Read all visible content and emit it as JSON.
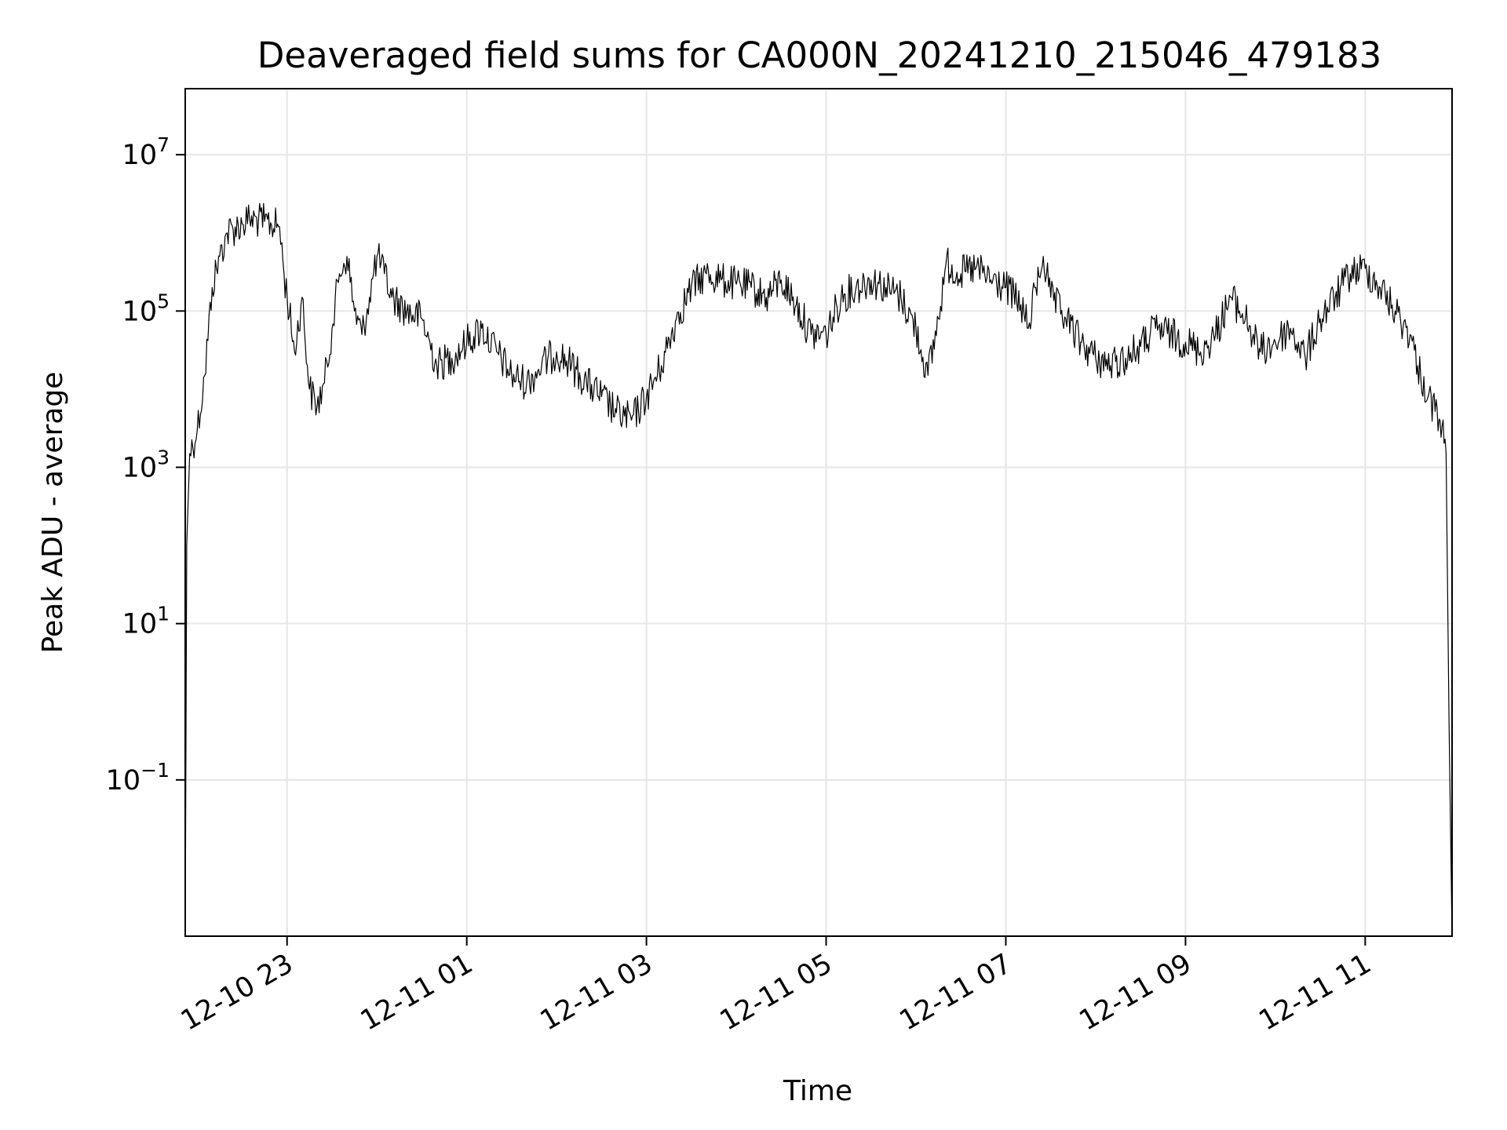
{
  "chart_data": {
    "type": "line",
    "title": "Deaveraged field sums for CA000N_20241210_215046_479183",
    "xlabel": "Time",
    "ylabel": "Peak ADU - average",
    "y_scale": "log",
    "ylim": [
      "1e-3",
      "7e7"
    ],
    "xlim": [
      "2024-12-10 21:52",
      "2024-12-11 11:58"
    ],
    "grid": true,
    "line_color": "#000000",
    "x_ticks": [
      {
        "value": "2024-12-10 23:00",
        "label": "12-10 23"
      },
      {
        "value": "2024-12-11 01:00",
        "label": "12-11 01"
      },
      {
        "value": "2024-12-11 03:00",
        "label": "12-11 03"
      },
      {
        "value": "2024-12-11 05:00",
        "label": "12-11 05"
      },
      {
        "value": "2024-12-11 07:00",
        "label": "12-11 07"
      },
      {
        "value": "2024-12-11 09:00",
        "label": "12-11 09"
      },
      {
        "value": "2024-12-11 11:00",
        "label": "12-11 11"
      }
    ],
    "y_ticks": [
      {
        "value": 10000000.0,
        "base": "10",
        "exp": "7"
      },
      {
        "value": 100000.0,
        "base": "10",
        "exp": "5"
      },
      {
        "value": 1000.0,
        "base": "10",
        "exp": "3"
      },
      {
        "value": 10.0,
        "base": "10",
        "exp": "1"
      },
      {
        "value": 0.1,
        "base": "10",
        "exp": "−1"
      }
    ],
    "series": [
      {
        "points": [
          [
            "2024-12-10 21:52",
            0.001
          ],
          [
            "2024-12-10 21:53",
            100
          ],
          [
            "2024-12-10 21:55",
            1500
          ],
          [
            "2024-12-10 22:00",
            3000
          ],
          [
            "2024-12-10 22:05",
            15000
          ],
          [
            "2024-12-10 22:10",
            200000
          ],
          [
            "2024-12-10 22:15",
            500000
          ],
          [
            "2024-12-10 22:20",
            1000000
          ],
          [
            "2024-12-10 22:30",
            1300000
          ],
          [
            "2024-12-10 22:35",
            1500000
          ],
          [
            "2024-12-10 22:45",
            1400000
          ],
          [
            "2024-12-10 22:55",
            1200000
          ],
          [
            "2024-12-10 22:58",
            300000
          ],
          [
            "2024-12-10 23:05",
            30000
          ],
          [
            "2024-12-10 23:10",
            150000
          ],
          [
            "2024-12-10 23:15",
            10000
          ],
          [
            "2024-12-10 23:20",
            6000
          ],
          [
            "2024-12-10 23:25",
            12000
          ],
          [
            "2024-12-10 23:30",
            60000
          ],
          [
            "2024-12-10 23:35",
            300000
          ],
          [
            "2024-12-10 23:40",
            500000
          ],
          [
            "2024-12-10 23:45",
            100000
          ],
          [
            "2024-12-10 23:50",
            50000
          ],
          [
            "2024-12-10 23:55",
            150000
          ],
          [
            "2024-12-11 00:00",
            500000
          ],
          [
            "2024-12-11 00:05",
            300000
          ],
          [
            "2024-12-11 00:10",
            150000
          ],
          [
            "2024-12-11 00:20",
            100000
          ],
          [
            "2024-12-11 00:30",
            80000
          ],
          [
            "2024-12-11 00:40",
            20000
          ],
          [
            "2024-12-11 00:50",
            25000
          ],
          [
            "2024-12-11 01:00",
            40000
          ],
          [
            "2024-12-11 01:10",
            60000
          ],
          [
            "2024-12-11 01:20",
            30000
          ],
          [
            "2024-12-11 01:30",
            15000
          ],
          [
            "2024-12-11 01:40",
            12000
          ],
          [
            "2024-12-11 01:50",
            20000
          ],
          [
            "2024-12-11 02:00",
            30000
          ],
          [
            "2024-12-11 02:10",
            20000
          ],
          [
            "2024-12-11 02:20",
            12000
          ],
          [
            "2024-12-11 02:30",
            8000
          ],
          [
            "2024-12-11 02:40",
            5000
          ],
          [
            "2024-12-11 02:50",
            4000
          ],
          [
            "2024-12-11 03:00",
            8000
          ],
          [
            "2024-12-11 03:10",
            20000
          ],
          [
            "2024-12-11 03:20",
            80000
          ],
          [
            "2024-12-11 03:30",
            200000
          ],
          [
            "2024-12-11 03:40",
            300000
          ],
          [
            "2024-12-11 03:50",
            250000
          ],
          [
            "2024-12-11 04:00",
            220000
          ],
          [
            "2024-12-11 04:10",
            200000
          ],
          [
            "2024-12-11 04:20",
            150000
          ],
          [
            "2024-12-11 04:30",
            250000
          ],
          [
            "2024-12-11 04:40",
            120000
          ],
          [
            "2024-12-11 04:50",
            50000
          ],
          [
            "2024-12-11 05:00",
            50000
          ],
          [
            "2024-12-11 05:10",
            150000
          ],
          [
            "2024-12-11 05:20",
            200000
          ],
          [
            "2024-12-11 05:30",
            250000
          ],
          [
            "2024-12-11 05:40",
            200000
          ],
          [
            "2024-12-11 05:50",
            150000
          ],
          [
            "2024-12-11 06:00",
            60000
          ],
          [
            "2024-12-11 06:08",
            15000
          ],
          [
            "2024-12-11 06:15",
            80000
          ],
          [
            "2024-12-11 06:20",
            400000
          ],
          [
            "2024-12-11 06:30",
            300000
          ],
          [
            "2024-12-11 06:40",
            350000
          ],
          [
            "2024-12-11 06:50",
            250000
          ],
          [
            "2024-12-11 07:00",
            200000
          ],
          [
            "2024-12-11 07:10",
            120000
          ],
          [
            "2024-12-11 07:15",
            60000
          ],
          [
            "2024-12-11 07:20",
            200000
          ],
          [
            "2024-12-11 07:25",
            500000
          ],
          [
            "2024-12-11 07:30",
            150000
          ],
          [
            "2024-12-11 07:40",
            80000
          ],
          [
            "2024-12-11 07:50",
            40000
          ],
          [
            "2024-12-11 08:00",
            25000
          ],
          [
            "2024-12-11 08:10",
            20000
          ],
          [
            "2024-12-11 08:20",
            25000
          ],
          [
            "2024-12-11 08:30",
            35000
          ],
          [
            "2024-12-11 08:40",
            60000
          ],
          [
            "2024-12-11 08:50",
            50000
          ],
          [
            "2024-12-11 09:00",
            40000
          ],
          [
            "2024-12-11 09:10",
            30000
          ],
          [
            "2024-12-11 09:20",
            50000
          ],
          [
            "2024-12-11 09:30",
            150000
          ],
          [
            "2024-12-11 09:40",
            80000
          ],
          [
            "2024-12-11 09:50",
            30000
          ],
          [
            "2024-12-11 10:00",
            40000
          ],
          [
            "2024-12-11 10:10",
            60000
          ],
          [
            "2024-12-11 10:20",
            25000
          ],
          [
            "2024-12-11 10:30",
            80000
          ],
          [
            "2024-12-11 10:40",
            150000
          ],
          [
            "2024-12-11 10:50",
            300000
          ],
          [
            "2024-12-11 11:00",
            350000
          ],
          [
            "2024-12-11 11:10",
            200000
          ],
          [
            "2024-12-11 11:20",
            100000
          ],
          [
            "2024-12-11 11:30",
            50000
          ],
          [
            "2024-12-11 11:35",
            20000
          ],
          [
            "2024-12-11 11:42",
            8000
          ],
          [
            "2024-12-11 11:50",
            4000
          ],
          [
            "2024-12-11 11:54",
            1500
          ],
          [
            "2024-12-11 11:56",
            0.5
          ],
          [
            "2024-12-11 11:58",
            0.001
          ]
        ]
      }
    ]
  }
}
